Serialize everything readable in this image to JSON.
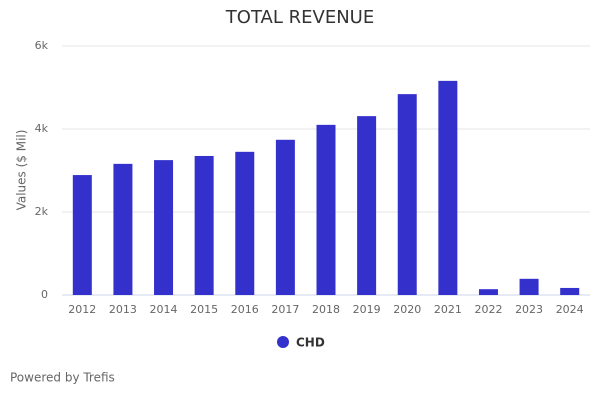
{
  "chart_data": {
    "type": "bar",
    "title": "TOTAL REVENUE",
    "y_label": "Values ($ Mil)",
    "credit": "Powered by Trefis",
    "categories": [
      "2012",
      "2013",
      "2014",
      "2015",
      "2016",
      "2017",
      "2018",
      "2019",
      "2020",
      "2021",
      "2022",
      "2023",
      "2024"
    ],
    "series": [
      {
        "name": "CHD",
        "color": "#3430cc",
        "values": [
          2890,
          3160,
          3250,
          3350,
          3450,
          3740,
          4100,
          4310,
          4840,
          5160,
          140,
          390,
          170
        ]
      }
    ],
    "ylim": [
      0,
      6000
    ],
    "yticks": [
      0,
      {
        "value": 2000,
        "label": "2k"
      },
      {
        "value": 4000,
        "label": "4k"
      },
      {
        "value": 6000,
        "label": "6k"
      }
    ],
    "grid": true
  }
}
